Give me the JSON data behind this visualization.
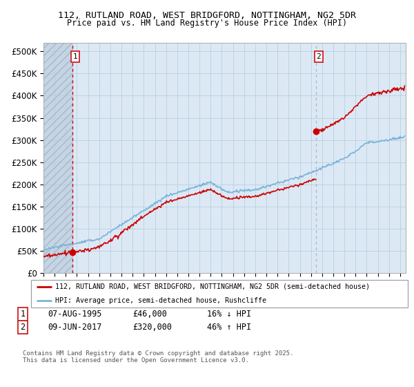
{
  "title1": "112, RUTLAND ROAD, WEST BRIDGFORD, NOTTINGHAM, NG2 5DR",
  "title2": "Price paid vs. HM Land Registry's House Price Index (HPI)",
  "ylim": [
    0,
    520000
  ],
  "yticks": [
    0,
    50000,
    100000,
    150000,
    200000,
    250000,
    300000,
    350000,
    400000,
    450000,
    500000
  ],
  "ytick_labels": [
    "£0",
    "£50K",
    "£100K",
    "£150K",
    "£200K",
    "£250K",
    "£300K",
    "£350K",
    "£400K",
    "£450K",
    "£500K"
  ],
  "xlim_start": 1993.0,
  "xlim_end": 2025.5,
  "purchase1_x": 1995.6,
  "purchase1_y": 46000,
  "purchase1_label": "1",
  "purchase2_x": 2017.45,
  "purchase2_y": 320000,
  "purchase2_label": "2",
  "hpi_color": "#7ab4d8",
  "price_color": "#cc0000",
  "vline1_color": "#cc0000",
  "vline2_color": "#aabbcc",
  "bg_color": "#dce9f5",
  "grid_color": "#b8cfe0",
  "legend_line1": "112, RUTLAND ROAD, WEST BRIDGFORD, NOTTINGHAM, NG2 5DR (semi-detached house)",
  "legend_line2": "HPI: Average price, semi-detached house, Rushcliffe",
  "ann1_date": "07-AUG-1995",
  "ann1_price": "£46,000",
  "ann1_hpi": "16% ↓ HPI",
  "ann2_date": "09-JUN-2017",
  "ann2_price": "£320,000",
  "ann2_hpi": "46% ↑ HPI",
  "footer": "Contains HM Land Registry data © Crown copyright and database right 2025.\nThis data is licensed under the Open Government Licence v3.0."
}
